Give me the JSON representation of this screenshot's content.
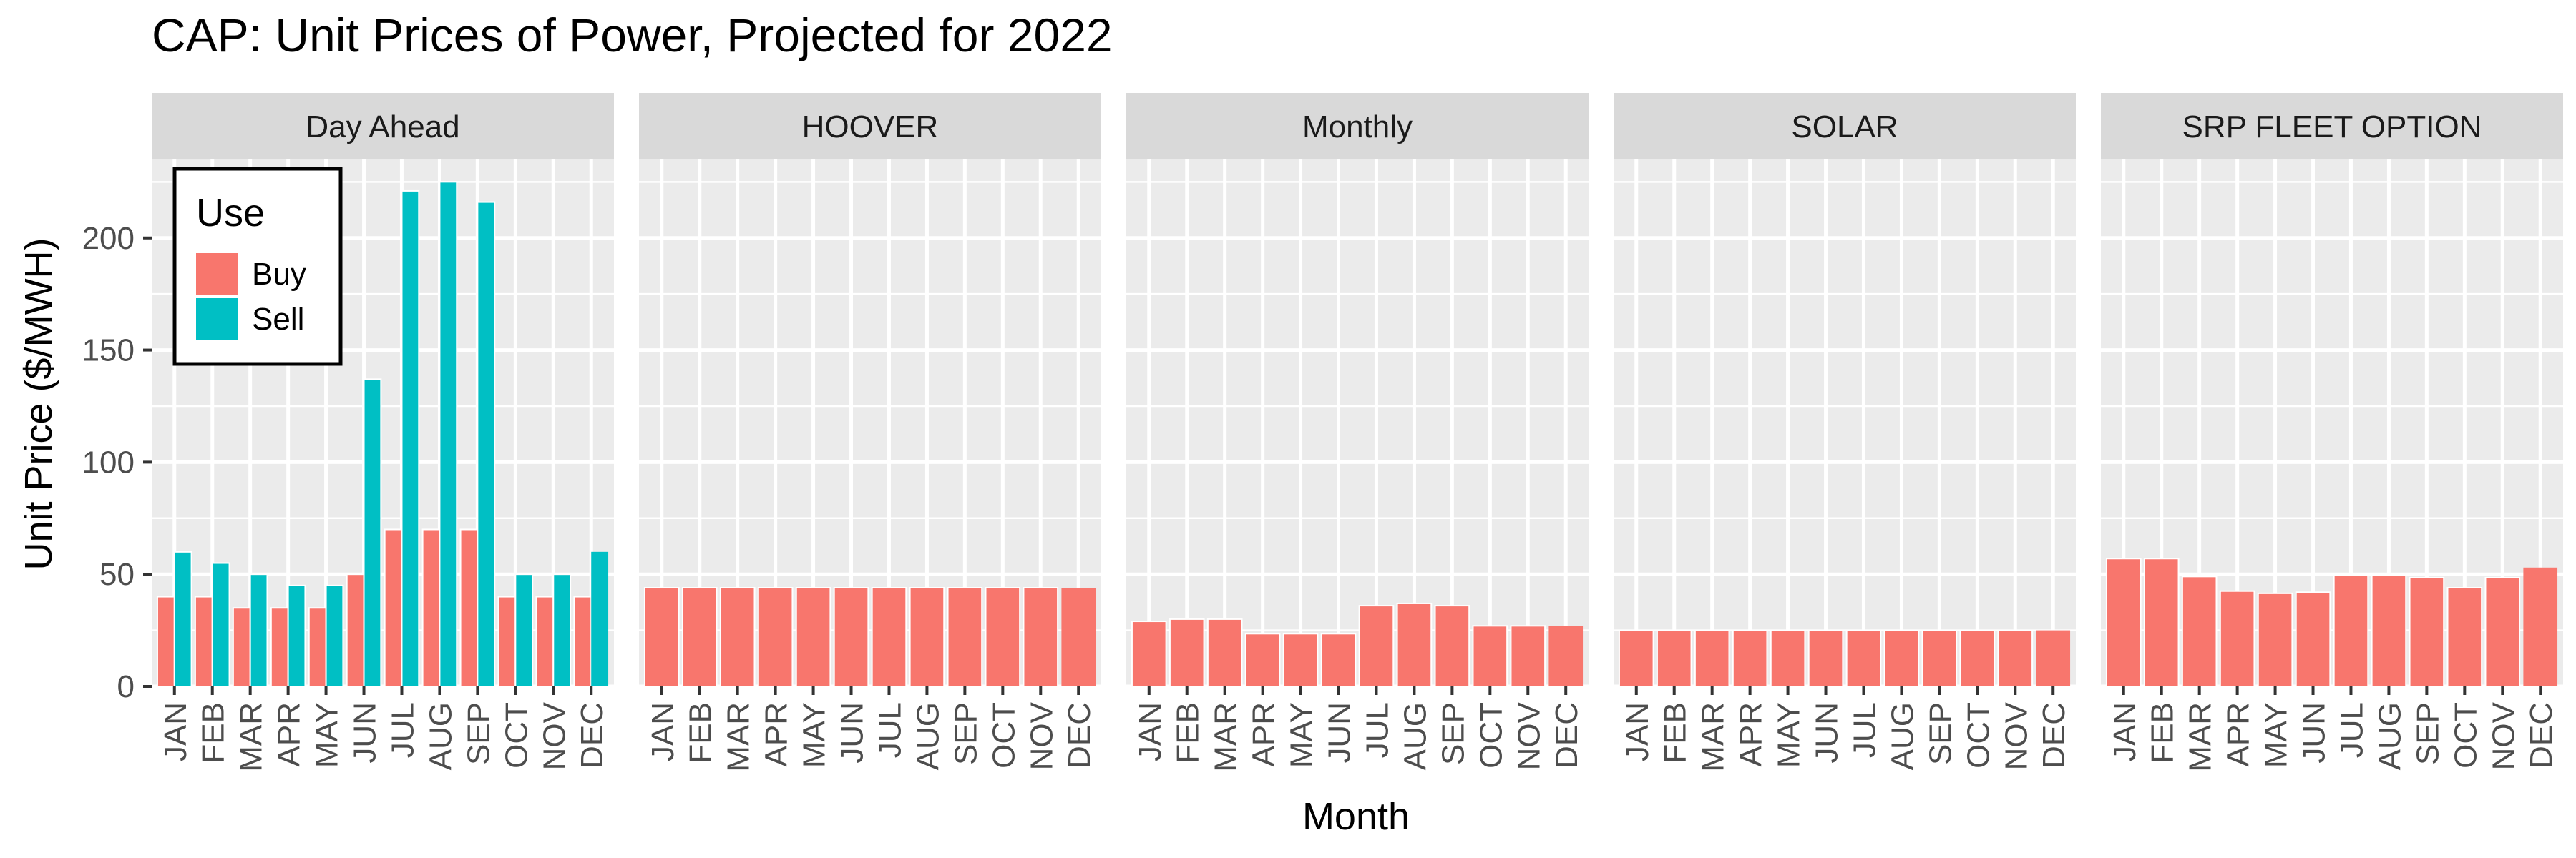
{
  "chart_data": {
    "type": "bar",
    "title": "CAP: Unit Prices of Power, Projected for 2022",
    "xlabel": "Month",
    "ylabel": "Unit Price ($/MWH)",
    "ylim": [
      0,
      235
    ],
    "yticks": [
      0,
      50,
      100,
      150,
      200
    ],
    "categories": [
      "JAN",
      "FEB",
      "MAR",
      "APR",
      "MAY",
      "JUN",
      "JUL",
      "AUG",
      "SEP",
      "OCT",
      "NOV",
      "DEC"
    ],
    "grid": true,
    "legend": {
      "title": "Use",
      "placement": "inside top-left of first panel",
      "entries": [
        {
          "name": "Buy",
          "color": "#F8766D"
        },
        {
          "name": "Sell",
          "color": "#00BFC4"
        }
      ]
    },
    "facets": [
      {
        "name": "Day Ahead",
        "series": [
          {
            "name": "Buy",
            "values": [
              40,
              40,
              35,
              35,
              35,
              50,
              70,
              70,
              70,
              40,
              40,
              40
            ]
          },
          {
            "name": "Sell",
            "values": [
              60,
              55,
              50,
              45,
              45,
              137,
              221,
              225,
              216,
              50,
              50,
              60
            ]
          }
        ]
      },
      {
        "name": "HOOVER",
        "series": [
          {
            "name": "Buy",
            "values": [
              44,
              44,
              44,
              44,
              44,
              44,
              44,
              44,
              44,
              44,
              44,
              44
            ]
          }
        ]
      },
      {
        "name": "Monthly",
        "series": [
          {
            "name": "Buy",
            "values": [
              29,
              30,
              30,
              23.5,
              23.5,
              23.5,
              36,
              37,
              36,
              27,
              27,
              27
            ]
          }
        ]
      },
      {
        "name": "SOLAR",
        "series": [
          {
            "name": "Buy",
            "values": [
              25,
              25,
              25,
              25,
              25,
              25,
              25,
              25,
              25,
              25,
              25,
              25
            ]
          }
        ]
      },
      {
        "name": "SRP FLEET OPTION",
        "series": [
          {
            "name": "Buy",
            "values": [
              57,
              57,
              49,
              42.5,
              41.5,
              42,
              49.5,
              49.5,
              48.5,
              44,
              48.5,
              53
            ]
          }
        ]
      }
    ]
  }
}
